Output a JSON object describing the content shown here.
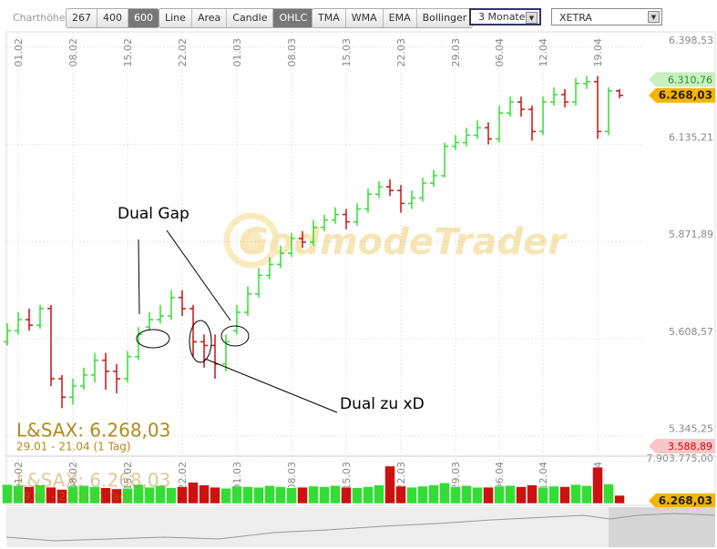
{
  "toolbar": {
    "height_label": "Charthöhe",
    "heights": [
      "267",
      "400",
      "600"
    ],
    "types": [
      "Line",
      "Area",
      "Candle",
      "OHLC"
    ],
    "indicators": [
      "TMA",
      "WMA",
      "EMA",
      "Bollinger"
    ],
    "period": "3 Monate",
    "exchange": "XETRA"
  },
  "chart_data": {
    "type": "ohlc",
    "instrument": "L&SAX: 6.268,03",
    "range": "29.01 - 21.04 (1 Tag)",
    "watermark": "GodmodeTrader",
    "annotations": [
      "Dual Gap",
      "Dual zu xD"
    ],
    "up_color": "#33dd33",
    "down_color": "#cc1111",
    "categories": [
      null,
      "01.02",
      null,
      null,
      null,
      null,
      "08.02",
      null,
      null,
      null,
      null,
      "15.02",
      null,
      null,
      null,
      null,
      "22.02",
      null,
      null,
      null,
      null,
      "01.03",
      null,
      null,
      null,
      null,
      "08.03",
      null,
      null,
      null,
      null,
      "15.03",
      null,
      null,
      null,
      null,
      "22.03",
      null,
      null,
      null,
      null,
      "29.03",
      null,
      null,
      null,
      "06.04",
      null,
      null,
      null,
      "12.04",
      null,
      null,
      null,
      null,
      "19.04",
      null,
      null
    ],
    "open": [
      5600,
      5630,
      5660,
      5645,
      5690,
      5500,
      5450,
      5480,
      5510,
      5550,
      5520,
      5500,
      5560,
      5640,
      5660,
      5670,
      5720,
      5690,
      5600,
      5590,
      5540,
      5630,
      5680,
      5730,
      5780,
      5810,
      5840,
      5880,
      5870,
      5910,
      5930,
      5945,
      5925,
      5960,
      6000,
      6020,
      6010,
      5975,
      5990,
      6030,
      6050,
      6130,
      6140,
      6160,
      6180,
      6150,
      6220,
      6250,
      6230,
      6170,
      6250,
      6270,
      6250,
      6300,
      6305,
      6170,
      6280
    ],
    "high": [
      5650,
      5680,
      5690,
      5700,
      5700,
      5510,
      5500,
      5530,
      5570,
      5570,
      5540,
      5575,
      5640,
      5680,
      5700,
      5740,
      5740,
      5700,
      5620,
      5620,
      5620,
      5700,
      5750,
      5800,
      5830,
      5860,
      5895,
      5900,
      5930,
      5945,
      5965,
      5960,
      5975,
      6015,
      6035,
      6040,
      6025,
      6010,
      6045,
      6065,
      6140,
      6160,
      6180,
      6200,
      6195,
      6240,
      6265,
      6265,
      6240,
      6265,
      6290,
      6285,
      6315,
      6320,
      6320,
      6290,
      6285
    ],
    "low": [
      5590,
      5620,
      5630,
      5635,
      5480,
      5420,
      5430,
      5470,
      5490,
      5470,
      5460,
      5490,
      5550,
      5630,
      5650,
      5660,
      5670,
      5560,
      5530,
      5500,
      5520,
      5620,
      5670,
      5720,
      5770,
      5800,
      5830,
      5855,
      5860,
      5900,
      5920,
      5905,
      5915,
      5950,
      5990,
      5995,
      5950,
      5960,
      5980,
      6020,
      6045,
      6120,
      6130,
      6150,
      6135,
      6140,
      6210,
      6210,
      6145,
      6160,
      6240,
      6235,
      6240,
      6285,
      6150,
      6160,
      6260
    ],
    "close": [
      5630,
      5660,
      5645,
      5690,
      5500,
      5450,
      5480,
      5510,
      5550,
      5520,
      5500,
      5560,
      5620,
      5660,
      5670,
      5720,
      5690,
      5600,
      5590,
      5540,
      5600,
      5680,
      5730,
      5780,
      5810,
      5840,
      5880,
      5870,
      5910,
      5930,
      5945,
      5925,
      5960,
      6000,
      6020,
      6010,
      5975,
      5990,
      6030,
      6050,
      6130,
      6140,
      6160,
      6180,
      6150,
      6220,
      6250,
      6230,
      6170,
      6250,
      6270,
      6250,
      6300,
      6305,
      6170,
      6280,
      6268.03
    ],
    "ylim": [
      5300,
      6440
    ],
    "yticks": [
      {
        "value": 5345.25,
        "label": "5.345,25"
      },
      {
        "value": 5608.57,
        "label": "5.608,57"
      },
      {
        "value": 5871.89,
        "label": "5.871,89"
      },
      {
        "value": 6135.21,
        "label": "6.135,21"
      },
      {
        "value": 6398.53,
        "label": "6.398,53"
      }
    ],
    "high_tag": {
      "value": 6310.76,
      "label": "6.310,76"
    },
    "last_tag": {
      "value": 6268.03,
      "label": "6.268,03"
    },
    "lower_tag": "3.588,89",
    "volume": {
      "values": [
        3500000,
        3300000,
        3100000,
        3400000,
        3000000,
        2600000,
        3200000,
        3300000,
        3100000,
        2900000,
        2700000,
        2800000,
        3500000,
        3000000,
        3300000,
        2900000,
        3100000,
        3900000,
        3400000,
        3000000,
        2800000,
        3200000,
        3100000,
        3000000,
        3300000,
        3100000,
        2900000,
        3000000,
        3200000,
        3100000,
        3300000,
        3000000,
        2900000,
        3100000,
        3400000,
        6900000,
        3200000,
        3000000,
        3200000,
        3400000,
        3800000,
        3100000,
        3300000,
        3000000,
        3000000,
        3200000,
        3300000,
        3100000,
        3400000,
        3000000,
        3200000,
        3100000,
        3500000,
        3300000,
        6700000,
        3600000,
        1500000
      ],
      "ylim": [
        0,
        8400000
      ],
      "yticks": [
        {
          "value": 7903775,
          "label": "7.903.775,00"
        }
      ]
    }
  }
}
